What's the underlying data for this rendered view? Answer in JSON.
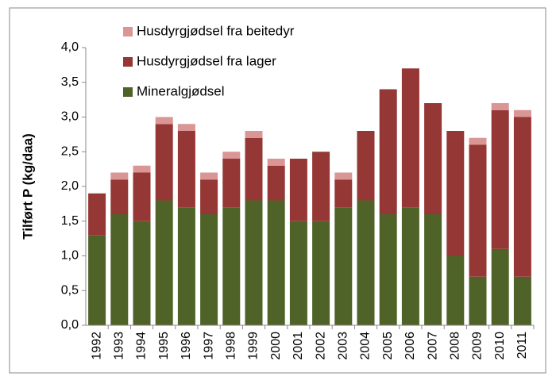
{
  "chart_data": {
    "type": "stacked_bar",
    "y_label": "Tilført P (kg/daa)",
    "categories": [
      "1992",
      "1993",
      "1994",
      "1995",
      "1996",
      "1997",
      "1998",
      "1999",
      "2000",
      "2001",
      "2002",
      "2003",
      "2004",
      "2005",
      "2006",
      "2007",
      "2008",
      "2009",
      "2010",
      "2011"
    ],
    "series": [
      {
        "name": "Mineralgjødsel",
        "color": "#4f6228",
        "values": [
          1.3,
          1.6,
          1.5,
          1.8,
          1.7,
          1.6,
          1.7,
          1.8,
          1.8,
          1.5,
          1.5,
          1.7,
          1.8,
          1.6,
          1.7,
          1.6,
          1.0,
          0.7,
          1.1,
          0.7
        ]
      },
      {
        "name": "Husdyrgjødsel fra lager",
        "color": "#953735",
        "values": [
          0.6,
          0.5,
          0.7,
          1.1,
          1.1,
          0.5,
          0.7,
          0.9,
          0.5,
          0.9,
          1.0,
          0.4,
          1.0,
          1.8,
          2.0,
          1.6,
          1.8,
          1.9,
          2.0,
          2.3
        ]
      },
      {
        "name": "Husdyrgjødsel fra beitedyr",
        "color": "#d99694",
        "values": [
          0,
          0.1,
          0.1,
          0.1,
          0.1,
          0.1,
          0.1,
          0.1,
          0.1,
          0,
          0,
          0.1,
          0,
          0,
          0,
          0,
          0,
          0.1,
          0.1,
          0.1
        ]
      }
    ],
    "ylim": [
      0,
      4
    ],
    "yticks": [
      {
        "value": 0,
        "label": "0,0"
      },
      {
        "value": 0.5,
        "label": "0,5"
      },
      {
        "value": 1,
        "label": "1,0"
      },
      {
        "value": 1.5,
        "label": "1,5"
      },
      {
        "value": 2,
        "label": "2,0"
      },
      {
        "value": 2.5,
        "label": "2,5"
      },
      {
        "value": 3,
        "label": "3,0"
      },
      {
        "value": 3.5,
        "label": "3,5"
      },
      {
        "value": 4,
        "label": "4,0"
      }
    ],
    "legend": "top-left"
  }
}
